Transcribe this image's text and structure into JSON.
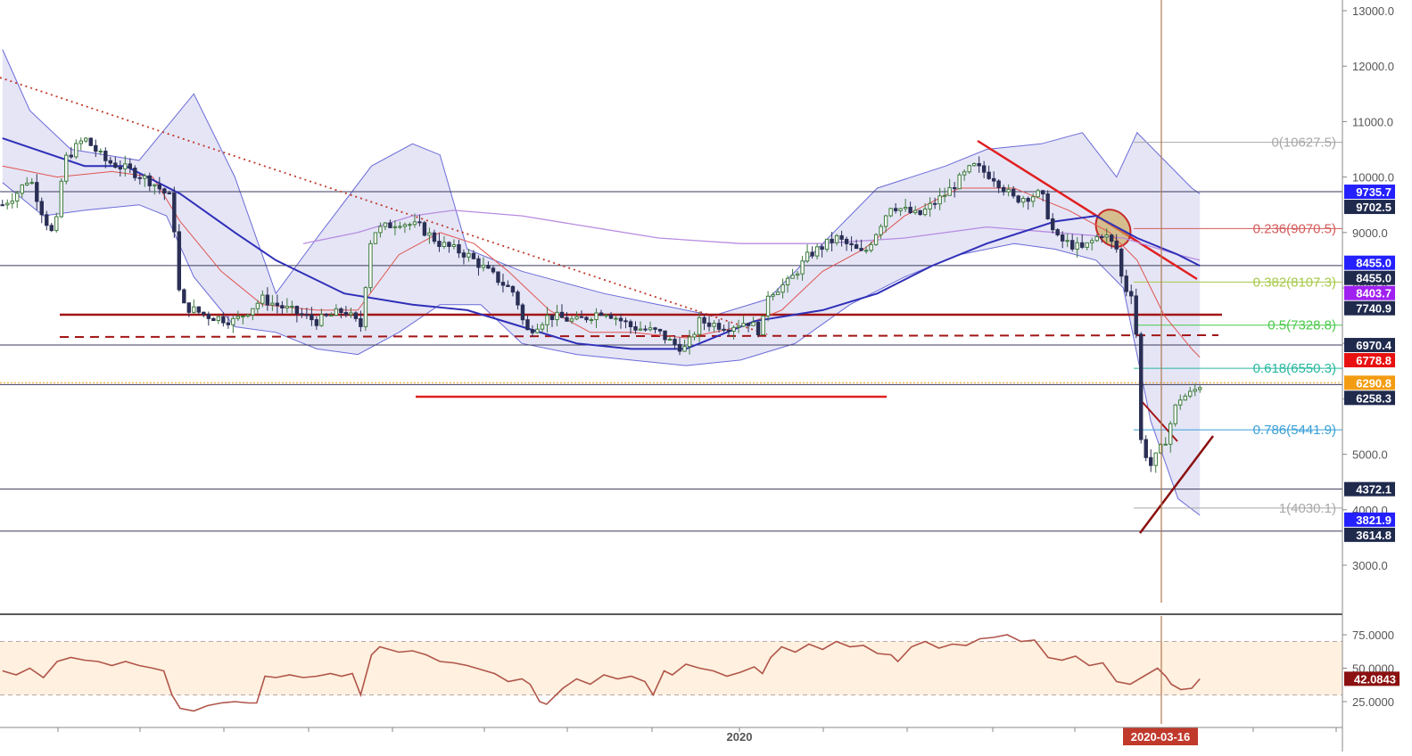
{
  "chart_data": [
    {
      "type": "candlestick",
      "title": "",
      "ylim": [
        2700,
        13200
      ],
      "y_ticks": [
        "13000.0",
        "12000.0",
        "11000.0",
        "10000.0",
        "9000.0",
        "8000.0",
        "7000.0",
        "6000.0",
        "5000.0",
        "4000.0",
        "3000.0"
      ],
      "y_tick_values": [
        13000,
        12000,
        11000,
        10000,
        9000,
        8000,
        7000,
        6000,
        5000,
        4000,
        3000
      ],
      "x_ticks": [
        "2020",
        "2020-03-16"
      ],
      "n_candles": 245,
      "close_path": [
        [
          0,
          9500
        ],
        [
          10,
          9700
        ],
        [
          20,
          10000
        ],
        [
          30,
          9300
        ],
        [
          38,
          8900
        ],
        [
          45,
          10300
        ],
        [
          60,
          10700
        ],
        [
          75,
          10300
        ],
        [
          95,
          10100
        ],
        [
          110,
          9900
        ],
        [
          124,
          9600
        ],
        [
          130,
          7700
        ],
        [
          150,
          7500
        ],
        [
          170,
          7400
        ],
        [
          190,
          7800
        ],
        [
          210,
          7600
        ],
        [
          230,
          7400
        ],
        [
          250,
          7600
        ],
        [
          262,
          7300
        ],
        [
          270,
          9000
        ],
        [
          290,
          9200
        ],
        [
          305,
          9100
        ],
        [
          320,
          8800
        ],
        [
          340,
          8600
        ],
        [
          360,
          8200
        ],
        [
          375,
          7900
        ],
        [
          383,
          7200
        ],
        [
          400,
          7500
        ],
        [
          420,
          7400
        ],
        [
          440,
          7600
        ],
        [
          460,
          7300
        ],
        [
          480,
          7200
        ],
        [
          490,
          7000
        ],
        [
          500,
          6900
        ],
        [
          510,
          7400
        ],
        [
          530,
          7300
        ],
        [
          545,
          7400
        ],
        [
          555,
          7200
        ],
        [
          560,
          7900
        ],
        [
          575,
          8100
        ],
        [
          590,
          8600
        ],
        [
          610,
          8900
        ],
        [
          630,
          8600
        ],
        [
          650,
          9500
        ],
        [
          670,
          9300
        ],
        [
          690,
          9700
        ],
        [
          710,
          10200
        ],
        [
          725,
          10000
        ],
        [
          740,
          9600
        ],
        [
          760,
          9700
        ],
        [
          770,
          8900
        ],
        [
          790,
          8700
        ],
        [
          805,
          9000
        ],
        [
          815,
          8700
        ],
        [
          820,
          8000
        ],
        [
          828,
          7900
        ],
        [
          833,
          5200
        ],
        [
          840,
          4800
        ],
        [
          850,
          5200
        ],
        [
          860,
          6000
        ],
        [
          870,
          6100
        ],
        [
          876,
          6250
        ]
      ],
      "bollinger_upper_path": [
        [
          0,
          12300
        ],
        [
          20,
          11200
        ],
        [
          50,
          10500
        ],
        [
          100,
          10300
        ],
        [
          120,
          10900
        ],
        [
          140,
          11500
        ],
        [
          170,
          10000
        ],
        [
          200,
          7900
        ],
        [
          230,
          8900
        ],
        [
          270,
          10200
        ],
        [
          300,
          10600
        ],
        [
          320,
          10400
        ],
        [
          340,
          8700
        ],
        [
          380,
          8300
        ],
        [
          410,
          8100
        ],
        [
          440,
          7900
        ],
        [
          480,
          7700
        ],
        [
          520,
          7500
        ],
        [
          560,
          7800
        ],
        [
          600,
          8800
        ],
        [
          640,
          9800
        ],
        [
          690,
          10200
        ],
        [
          720,
          10500
        ],
        [
          760,
          10600
        ],
        [
          790,
          10800
        ],
        [
          815,
          10000
        ],
        [
          830,
          10800
        ],
        [
          870,
          9800
        ],
        [
          876,
          9700
        ]
      ],
      "bollinger_lower_path": [
        [
          0,
          9900
        ],
        [
          30,
          9300
        ],
        [
          60,
          9400
        ],
        [
          100,
          9500
        ],
        [
          120,
          9300
        ],
        [
          140,
          8200
        ],
        [
          170,
          7300
        ],
        [
          200,
          7200
        ],
        [
          230,
          6900
        ],
        [
          260,
          6800
        ],
        [
          290,
          7200
        ],
        [
          320,
          7700
        ],
        [
          350,
          7700
        ],
        [
          380,
          7000
        ],
        [
          420,
          6800
        ],
        [
          460,
          6700
        ],
        [
          500,
          6600
        ],
        [
          540,
          6700
        ],
        [
          580,
          7000
        ],
        [
          620,
          7700
        ],
        [
          660,
          8200
        ],
        [
          700,
          8600
        ],
        [
          740,
          8800
        ],
        [
          770,
          8700
        ],
        [
          800,
          8500
        ],
        [
          820,
          8000
        ],
        [
          840,
          5600
        ],
        [
          860,
          4200
        ],
        [
          876,
          3900
        ]
      ],
      "ema_blue_path": [
        [
          0,
          10700
        ],
        [
          60,
          10200
        ],
        [
          90,
          10200
        ],
        [
          130,
          9700
        ],
        [
          170,
          9000
        ],
        [
          200,
          8500
        ],
        [
          250,
          7900
        ],
        [
          300,
          7700
        ],
        [
          340,
          7600
        ],
        [
          380,
          7300
        ],
        [
          420,
          7000
        ],
        [
          460,
          6900
        ],
        [
          500,
          6900
        ],
        [
          550,
          7400
        ],
        [
          600,
          7600
        ],
        [
          640,
          7900
        ],
        [
          680,
          8400
        ],
        [
          720,
          8800
        ],
        [
          770,
          9200
        ],
        [
          800,
          9300
        ],
        [
          830,
          8900
        ],
        [
          860,
          8600
        ],
        [
          876,
          8400
        ]
      ],
      "sma_red_path": [
        [
          0,
          10200
        ],
        [
          40,
          10000
        ],
        [
          80,
          10100
        ],
        [
          110,
          10000
        ],
        [
          130,
          9200
        ],
        [
          160,
          8300
        ],
        [
          190,
          7700
        ],
        [
          230,
          7600
        ],
        [
          260,
          7600
        ],
        [
          290,
          8600
        ],
        [
          320,
          9000
        ],
        [
          345,
          8800
        ],
        [
          370,
          8300
        ],
        [
          400,
          7600
        ],
        [
          430,
          7200
        ],
        [
          460,
          7200
        ],
        [
          500,
          7100
        ],
        [
          540,
          7300
        ],
        [
          570,
          7600
        ],
        [
          600,
          8300
        ],
        [
          630,
          8700
        ],
        [
          660,
          9300
        ],
        [
          700,
          9800
        ],
        [
          740,
          9800
        ],
        [
          780,
          9400
        ],
        [
          810,
          9000
        ],
        [
          830,
          8500
        ],
        [
          850,
          7500
        ],
        [
          870,
          6900
        ],
        [
          876,
          6750
        ]
      ],
      "sma_purple_path": [
        [
          220,
          8800
        ],
        [
          260,
          9000
        ],
        [
          300,
          9300
        ],
        [
          330,
          9400
        ],
        [
          380,
          9300
        ],
        [
          430,
          9100
        ],
        [
          480,
          8900
        ],
        [
          540,
          8800
        ],
        [
          600,
          8800
        ],
        [
          660,
          8900
        ],
        [
          720,
          9100
        ],
        [
          770,
          9000
        ],
        [
          820,
          8900
        ],
        [
          860,
          8600
        ],
        [
          876,
          8500
        ]
      ],
      "horizontal_levels": [
        {
          "label": "9735.7",
          "value": 9735.7,
          "color": "#2420ff"
        },
        {
          "label": "9702.5",
          "value": 9702.5,
          "color": "#1f2a4d"
        },
        {
          "label": "8455.0",
          "value": 8455.0,
          "color": "#2420ff"
        },
        {
          "label": "8455.0",
          "value": 8455.0,
          "color": "#1f2a4d"
        },
        {
          "label": "8403.7",
          "value": 8403.7,
          "color": "#a020f0"
        },
        {
          "label": "7740.9",
          "value": 7740.9,
          "color": "#1f2a4d"
        },
        {
          "label": "6970.4",
          "value": 6970.4,
          "color": "#1f2a4d"
        },
        {
          "label": "6778.8",
          "value": 6778.8,
          "color": "#e81010"
        },
        {
          "label": "6290.8",
          "value": 6290.8,
          "color": "#f39c12"
        },
        {
          "label": "6258.3",
          "value": 6258.3,
          "color": "#1f2a4d"
        },
        {
          "label": "4372.1",
          "value": 4372.1,
          "color": "#1f2a4d"
        },
        {
          "label": "3821.9",
          "value": 3821.9,
          "color": "#2420ff"
        },
        {
          "label": "3614.8",
          "value": 3614.8,
          "color": "#1f2a4d"
        }
      ],
      "fibonacci": [
        {
          "label": "0(10627.5)",
          "value": 10627.5,
          "color": "#a8a8a8"
        },
        {
          "label": "0.236(9070.5)",
          "value": 9070.5,
          "color": "#d45a5a"
        },
        {
          "label": "0.382(8107.3)",
          "value": 8107.3,
          "color": "#a6c94a"
        },
        {
          "label": "0.5(7328.8)",
          "value": 7328.8,
          "color": "#4cc94c"
        },
        {
          "label": "0.618(6550.3)",
          "value": 6550.3,
          "color": "#28b8a0"
        },
        {
          "label": "0.786(5441.9)",
          "value": 5441.9,
          "color": "#3aa0d8"
        },
        {
          "label": "1(4030.1)",
          "value": 4030.1,
          "color": "#a8a8a8"
        }
      ]
    },
    {
      "type": "line",
      "title": "",
      "ylim": [
        12,
        80
      ],
      "y_ticks": [
        "75.0000",
        "50.0000",
        "25.0000"
      ],
      "y_tick_values": [
        75,
        50,
        25
      ],
      "band": [
        30,
        70
      ],
      "current_label": "42.0843",
      "current_value": 42.0843,
      "series_path": [
        [
          0,
          48
        ],
        [
          10,
          45
        ],
        [
          20,
          50
        ],
        [
          30,
          43
        ],
        [
          40,
          55
        ],
        [
          50,
          58
        ],
        [
          60,
          56
        ],
        [
          70,
          55
        ],
        [
          80,
          52
        ],
        [
          90,
          55
        ],
        [
          100,
          52
        ],
        [
          110,
          50
        ],
        [
          118,
          48
        ],
        [
          124,
          30
        ],
        [
          130,
          20
        ],
        [
          140,
          18
        ],
        [
          150,
          22
        ],
        [
          160,
          24
        ],
        [
          170,
          25
        ],
        [
          180,
          24
        ],
        [
          186,
          24
        ],
        [
          192,
          44
        ],
        [
          200,
          43
        ],
        [
          210,
          45
        ],
        [
          220,
          43
        ],
        [
          230,
          44
        ],
        [
          240,
          46
        ],
        [
          248,
          44
        ],
        [
          256,
          46
        ],
        [
          262,
          30
        ],
        [
          270,
          60
        ],
        [
          276,
          66
        ],
        [
          290,
          62
        ],
        [
          300,
          63
        ],
        [
          310,
          60
        ],
        [
          320,
          55
        ],
        [
          330,
          54
        ],
        [
          340,
          52
        ],
        [
          350,
          49
        ],
        [
          360,
          46
        ],
        [
          370,
          40
        ],
        [
          380,
          42
        ],
        [
          386,
          38
        ],
        [
          393,
          25
        ],
        [
          398,
          23
        ],
        [
          410,
          35
        ],
        [
          420,
          42
        ],
        [
          430,
          38
        ],
        [
          440,
          45
        ],
        [
          450,
          42
        ],
        [
          460,
          44
        ],
        [
          470,
          40
        ],
        [
          476,
          30
        ],
        [
          484,
          48
        ],
        [
          490,
          45
        ],
        [
          500,
          53
        ],
        [
          510,
          50
        ],
        [
          520,
          48
        ],
        [
          530,
          44
        ],
        [
          540,
          47
        ],
        [
          550,
          51
        ],
        [
          556,
          46
        ],
        [
          562,
          58
        ],
        [
          570,
          66
        ],
        [
          580,
          62
        ],
        [
          590,
          68
        ],
        [
          600,
          64
        ],
        [
          610,
          70
        ],
        [
          620,
          66
        ],
        [
          630,
          67
        ],
        [
          640,
          61
        ],
        [
          650,
          60
        ],
        [
          655,
          55
        ],
        [
          665,
          66
        ],
        [
          675,
          70
        ],
        [
          685,
          65
        ],
        [
          695,
          68
        ],
        [
          705,
          67
        ],
        [
          715,
          72
        ],
        [
          725,
          73
        ],
        [
          735,
          75
        ],
        [
          745,
          70
        ],
        [
          755,
          71
        ],
        [
          765,
          58
        ],
        [
          775,
          56
        ],
        [
          785,
          59
        ],
        [
          795,
          52
        ],
        [
          805,
          54
        ],
        [
          815,
          40
        ],
        [
          825,
          38
        ],
        [
          835,
          44
        ],
        [
          845,
          50
        ],
        [
          851,
          44
        ],
        [
          855,
          38
        ],
        [
          862,
          34
        ],
        [
          870,
          35
        ],
        [
          876,
          42
        ]
      ]
    }
  ]
}
